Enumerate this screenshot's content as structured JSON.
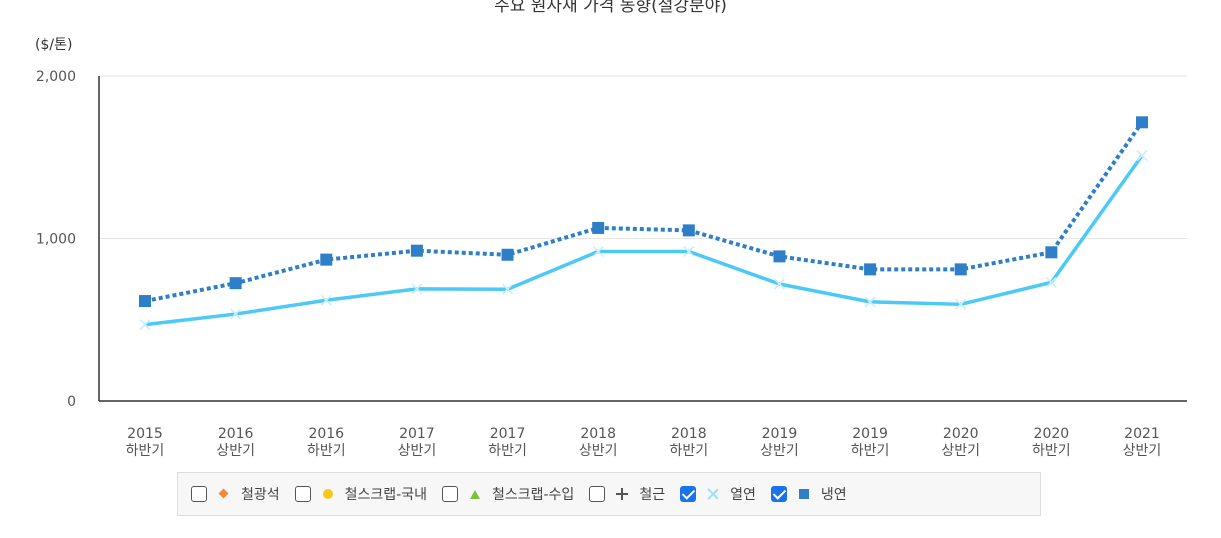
{
  "chart_data": {
    "type": "line",
    "title": "주요 원자재 가격 동향(철강분야)",
    "ylabel": "($/톤)",
    "ylim": [
      0,
      2000
    ],
    "yticks": [
      {
        "value": 0,
        "label": "0"
      },
      {
        "value": 1000,
        "label": "1,000"
      },
      {
        "value": 2000,
        "label": "2,000"
      }
    ],
    "categories": [
      [
        "2015",
        "하반기"
      ],
      [
        "2016",
        "상반기"
      ],
      [
        "2016",
        "하반기"
      ],
      [
        "2017",
        "상반기"
      ],
      [
        "2017",
        "하반기"
      ],
      [
        "2018",
        "상반기"
      ],
      [
        "2018",
        "하반기"
      ],
      [
        "2019",
        "상반기"
      ],
      [
        "2019",
        "하반기"
      ],
      [
        "2020",
        "상반기"
      ],
      [
        "2020",
        "하반기"
      ],
      [
        "2021",
        "상반기"
      ]
    ],
    "series": [
      {
        "name": "열연",
        "color": "#4cc9f7",
        "marker": "x",
        "style": "solid",
        "values": [
          470,
          535,
          620,
          690,
          688,
          920,
          920,
          720,
          610,
          595,
          730,
          1510
        ]
      },
      {
        "name": "냉연",
        "color": "#2e7fc7",
        "marker": "square",
        "style": "dotted",
        "values": [
          615,
          725,
          870,
          925,
          900,
          1065,
          1050,
          890,
          810,
          810,
          915,
          1715
        ]
      }
    ],
    "grid": "horizontal",
    "legend_position": "bottom"
  },
  "legend": {
    "items": [
      {
        "label": "철광석",
        "checked": false,
        "marker": "diamond",
        "color": "#f4883a"
      },
      {
        "label": "철스크랩-국내",
        "checked": false,
        "marker": "circle",
        "color": "#f8c51c"
      },
      {
        "label": "철스크랩-수입",
        "checked": false,
        "marker": "triangle",
        "color": "#7cc23b"
      },
      {
        "label": "철근",
        "checked": false,
        "marker": "plus",
        "color": "#555555"
      },
      {
        "label": "열연",
        "checked": true,
        "marker": "x",
        "color": "#9ee0f8"
      },
      {
        "label": "냉연",
        "checked": true,
        "marker": "square",
        "color": "#2e7fc7"
      }
    ]
  }
}
